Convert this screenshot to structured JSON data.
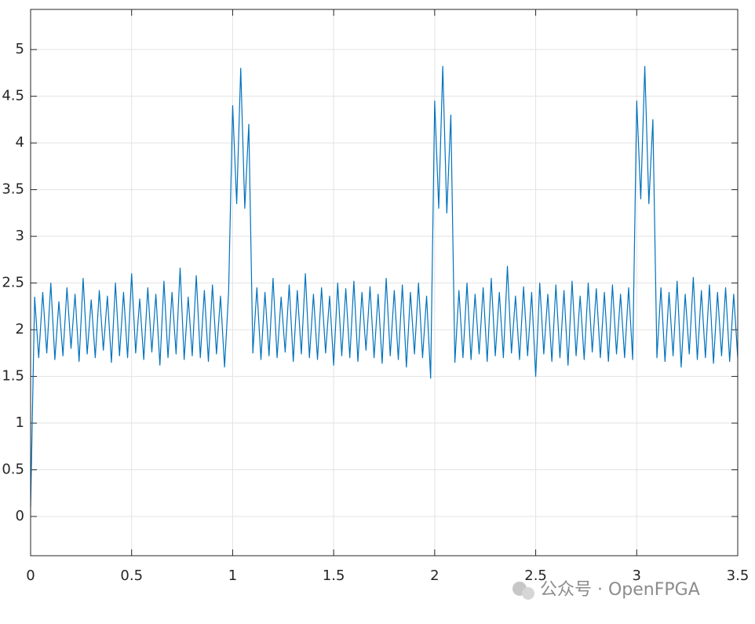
{
  "chart_data": {
    "type": "line",
    "watermark": "公众号 · OpenFPGA",
    "x": [
      0,
      0.02,
      0.04,
      0.06,
      0.08,
      0.1,
      0.12,
      0.14,
      0.16,
      0.18,
      0.2,
      0.22,
      0.24,
      0.26,
      0.28,
      0.3,
      0.32,
      0.34,
      0.36,
      0.38,
      0.4,
      0.42,
      0.44,
      0.46,
      0.48,
      0.5,
      0.52,
      0.54,
      0.56,
      0.58,
      0.6,
      0.62,
      0.64,
      0.66,
      0.68,
      0.7,
      0.72,
      0.74,
      0.76,
      0.78,
      0.8,
      0.82,
      0.84,
      0.86,
      0.88,
      0.9,
      0.92,
      0.94,
      0.96,
      0.98,
      1,
      1.02,
      1.04,
      1.06,
      1.08,
      1.1,
      1.12,
      1.14,
      1.16,
      1.18,
      1.2,
      1.22,
      1.24,
      1.26,
      1.28,
      1.3,
      1.32,
      1.34,
      1.36,
      1.38,
      1.4,
      1.42,
      1.44,
      1.46,
      1.48,
      1.5,
      1.52,
      1.54,
      1.56,
      1.58,
      1.6,
      1.62,
      1.64,
      1.66,
      1.68,
      1.7,
      1.72,
      1.74,
      1.76,
      1.78,
      1.8,
      1.82,
      1.84,
      1.86,
      1.88,
      1.9,
      1.92,
      1.94,
      1.96,
      1.98,
      2,
      2.02,
      2.04,
      2.06,
      2.08,
      2.1,
      2.12,
      2.14,
      2.16,
      2.18,
      2.2,
      2.22,
      2.24,
      2.26,
      2.28,
      2.3,
      2.32,
      2.34,
      2.36,
      2.38,
      2.4,
      2.42,
      2.44,
      2.46,
      2.48,
      2.5,
      2.52,
      2.54,
      2.56,
      2.58,
      2.6,
      2.62,
      2.64,
      2.66,
      2.68,
      2.7,
      2.72,
      2.74,
      2.76,
      2.78,
      2.8,
      2.82,
      2.84,
      2.86,
      2.88,
      2.9,
      2.92,
      2.94,
      2.96,
      2.98,
      3,
      3.02,
      3.04,
      3.06,
      3.08,
      3.1,
      3.12,
      3.14,
      3.16,
      3.18,
      3.2,
      3.22,
      3.24,
      3.26,
      3.28,
      3.3,
      3.32,
      3.34,
      3.36,
      3.38,
      3.4,
      3.42,
      3.44,
      3.46,
      3.48,
      3.5
    ],
    "series": [
      {
        "color": "#0072bd",
        "values": [
          0.1,
          2.35,
          1.7,
          2.4,
          1.75,
          2.5,
          1.68,
          2.3,
          1.72,
          2.45,
          1.8,
          2.38,
          1.66,
          2.55,
          1.74,
          2.32,
          1.7,
          2.42,
          1.78,
          2.36,
          1.65,
          2.5,
          1.72,
          2.4,
          1.7,
          2.6,
          1.75,
          2.33,
          1.68,
          2.45,
          1.76,
          2.38,
          1.62,
          2.52,
          1.7,
          2.4,
          1.74,
          2.66,
          1.68,
          2.35,
          1.72,
          2.58,
          1.7,
          2.42,
          1.66,
          2.48,
          1.74,
          2.36,
          1.6,
          2.4,
          4.4,
          3.35,
          4.8,
          3.3,
          4.2,
          1.75,
          2.45,
          1.68,
          2.4,
          1.72,
          2.55,
          1.7,
          2.35,
          1.76,
          2.48,
          1.66,
          2.42,
          1.74,
          2.6,
          1.7,
          2.38,
          1.68,
          2.45,
          1.75,
          2.36,
          1.62,
          2.5,
          1.72,
          2.44,
          1.7,
          2.52,
          1.66,
          2.4,
          1.78,
          2.46,
          1.7,
          2.38,
          1.64,
          2.55,
          1.72,
          2.42,
          1.68,
          2.48,
          1.6,
          2.4,
          1.74,
          2.5,
          1.7,
          2.36,
          1.48,
          4.45,
          3.3,
          4.82,
          3.25,
          4.3,
          1.65,
          2.42,
          1.7,
          2.5,
          1.68,
          2.38,
          1.74,
          2.45,
          1.66,
          2.55,
          1.72,
          2.4,
          1.7,
          2.68,
          1.75,
          2.36,
          1.68,
          2.46,
          1.72,
          2.4,
          1.5,
          2.5,
          1.74,
          2.38,
          1.66,
          2.48,
          1.7,
          2.42,
          1.62,
          2.52,
          1.72,
          2.36,
          1.68,
          2.5,
          1.76,
          2.44,
          1.7,
          2.4,
          1.66,
          2.48,
          1.74,
          2.38,
          1.7,
          2.45,
          1.68,
          4.45,
          3.4,
          4.82,
          3.35,
          4.25,
          1.7,
          2.45,
          1.66,
          2.4,
          1.72,
          2.52,
          1.6,
          2.38,
          1.74,
          2.56,
          1.68,
          2.42,
          1.7,
          2.48,
          1.64,
          2.4,
          1.72,
          2.45,
          1.66,
          2.38,
          1.7
        ]
      }
    ],
    "xlim": [
      0,
      3.5
    ],
    "ylim": [
      -0.42,
      5.43
    ],
    "xticks": [
      0,
      0.5,
      1,
      1.5,
      2,
      2.5,
      3,
      3.5
    ],
    "yticks": [
      0,
      0.5,
      1,
      1.5,
      2,
      2.5,
      3,
      3.5,
      4,
      4.5,
      5
    ],
    "grid": true
  }
}
